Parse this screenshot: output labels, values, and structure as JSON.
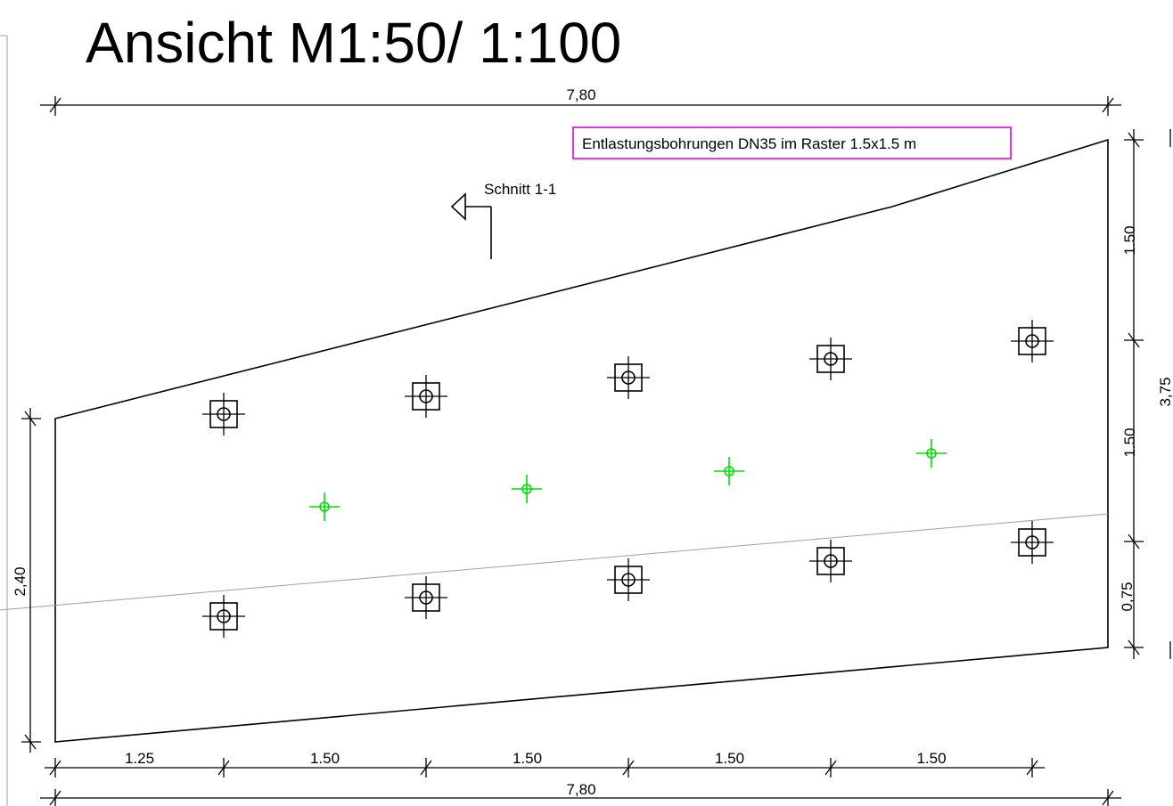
{
  "title": "Ansicht M1:50/ 1:100",
  "note": "Entlastungsbohrungen DN35 im Raster 1.5x1.5 m",
  "section_label": "Schnitt 1-1",
  "dimensions": {
    "top_total": "7,80",
    "bottom_total": "7,80",
    "bottom_segments": [
      "1.25",
      "1.50",
      "1.50",
      "1.50",
      "1.50"
    ],
    "left_height": "2,40",
    "right_segments": [
      "1.50",
      "1.50",
      "0,75"
    ],
    "right_total": "3,75"
  },
  "colors": {
    "lines": "#000000",
    "note_border": "#e000e0",
    "relief_bores": "#00e000",
    "reference_line": "#a0a0a0"
  },
  "symbols": {
    "anchor": "square-anchor-icon",
    "bore": "green-bore-icon",
    "section_marker": "section-arrow-icon"
  }
}
